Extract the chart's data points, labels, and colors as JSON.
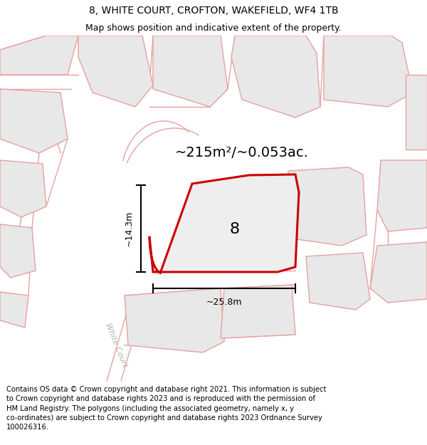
{
  "title": "8, WHITE COURT, CROFTON, WAKEFIELD, WF4 1TB",
  "subtitle": "Map shows position and indicative extent of the property.",
  "footer": "Contains OS data © Crown copyright and database right 2021. This information is subject\nto Crown copyright and database rights 2023 and is reproduced with the permission of\nHM Land Registry. The polygons (including the associated geometry, namely x, y\nco-ordinates) are subject to Crown copyright and database rights 2023 Ordnance Survey\n100026316.",
  "area_label": "~215m²/~0.053ac.",
  "number_label": "8",
  "dim_width": "~25.8m",
  "dim_height": "~14.3m",
  "street_label": "White Court",
  "building_fill": "#e8e8e8",
  "building_stroke": "#e8a0a0",
  "subject_stroke": "#cc0000",
  "subject_fill": "#eeeeee",
  "road_color": "#e8a0a0",
  "title_fontsize": 10,
  "subtitle_fontsize": 9,
  "footer_fontsize": 7.2,
  "area_fontsize": 14,
  "num_fontsize": 16,
  "dim_fontsize": 9
}
